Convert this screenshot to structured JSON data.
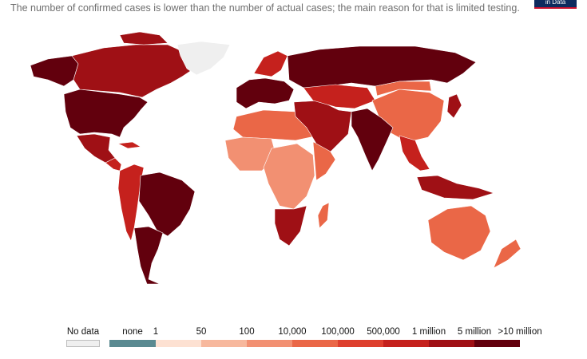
{
  "subtitle": "The number of confirmed cases is lower than the number of actual cases; the main reason for that is limited testing.",
  "logo_text": "in Data",
  "colors": {
    "no_data": "#efefef",
    "none": "#5a8a91",
    "c1": "#fde1d2",
    "c2": "#f7b89d",
    "c3": "#f29072",
    "c4": "#ea6747",
    "c5": "#de3f2e",
    "c6": "#c5211d",
    "c7": "#9f1015",
    "c8": "#62000d"
  },
  "legend": {
    "no_data_label": "No data",
    "labels": [
      "none",
      "1",
      "50",
      "100",
      "10,000",
      "100,000",
      "500,000",
      "1 million",
      "5 million",
      ">10 million"
    ]
  },
  "map_regions": [
    {
      "name": "north-america",
      "level": "c8"
    },
    {
      "name": "alaska",
      "level": "c8"
    },
    {
      "name": "canada",
      "level": "c7"
    },
    {
      "name": "greenland",
      "level": "no_data"
    },
    {
      "name": "mexico",
      "level": "c7"
    },
    {
      "name": "central-america",
      "level": "c6"
    },
    {
      "name": "south-america",
      "level": "c6"
    },
    {
      "name": "brazil",
      "level": "c8"
    },
    {
      "name": "argentina",
      "level": "c8"
    },
    {
      "name": "europe",
      "level": "c8"
    },
    {
      "name": "scandinavia",
      "level": "c6"
    },
    {
      "name": "russia",
      "level": "c8"
    },
    {
      "name": "north-africa",
      "level": "c4"
    },
    {
      "name": "west-africa",
      "level": "c3"
    },
    {
      "name": "central-africa",
      "level": "c3"
    },
    {
      "name": "east-africa",
      "level": "c4"
    },
    {
      "name": "southern-africa",
      "level": "c7"
    },
    {
      "name": "madagascar",
      "level": "c4"
    },
    {
      "name": "middle-east",
      "level": "c7"
    },
    {
      "name": "central-asia",
      "level": "c6"
    },
    {
      "name": "china",
      "level": "c4"
    },
    {
      "name": "mongolia",
      "level": "c4"
    },
    {
      "name": "india",
      "level": "c8"
    },
    {
      "name": "southeast-asia",
      "level": "c6"
    },
    {
      "name": "indonesia",
      "level": "c7"
    },
    {
      "name": "japan",
      "level": "c7"
    },
    {
      "name": "australia",
      "level": "c4"
    },
    {
      "name": "new-zealand",
      "level": "c4"
    },
    {
      "name": "cuba",
      "level": "c6"
    }
  ]
}
